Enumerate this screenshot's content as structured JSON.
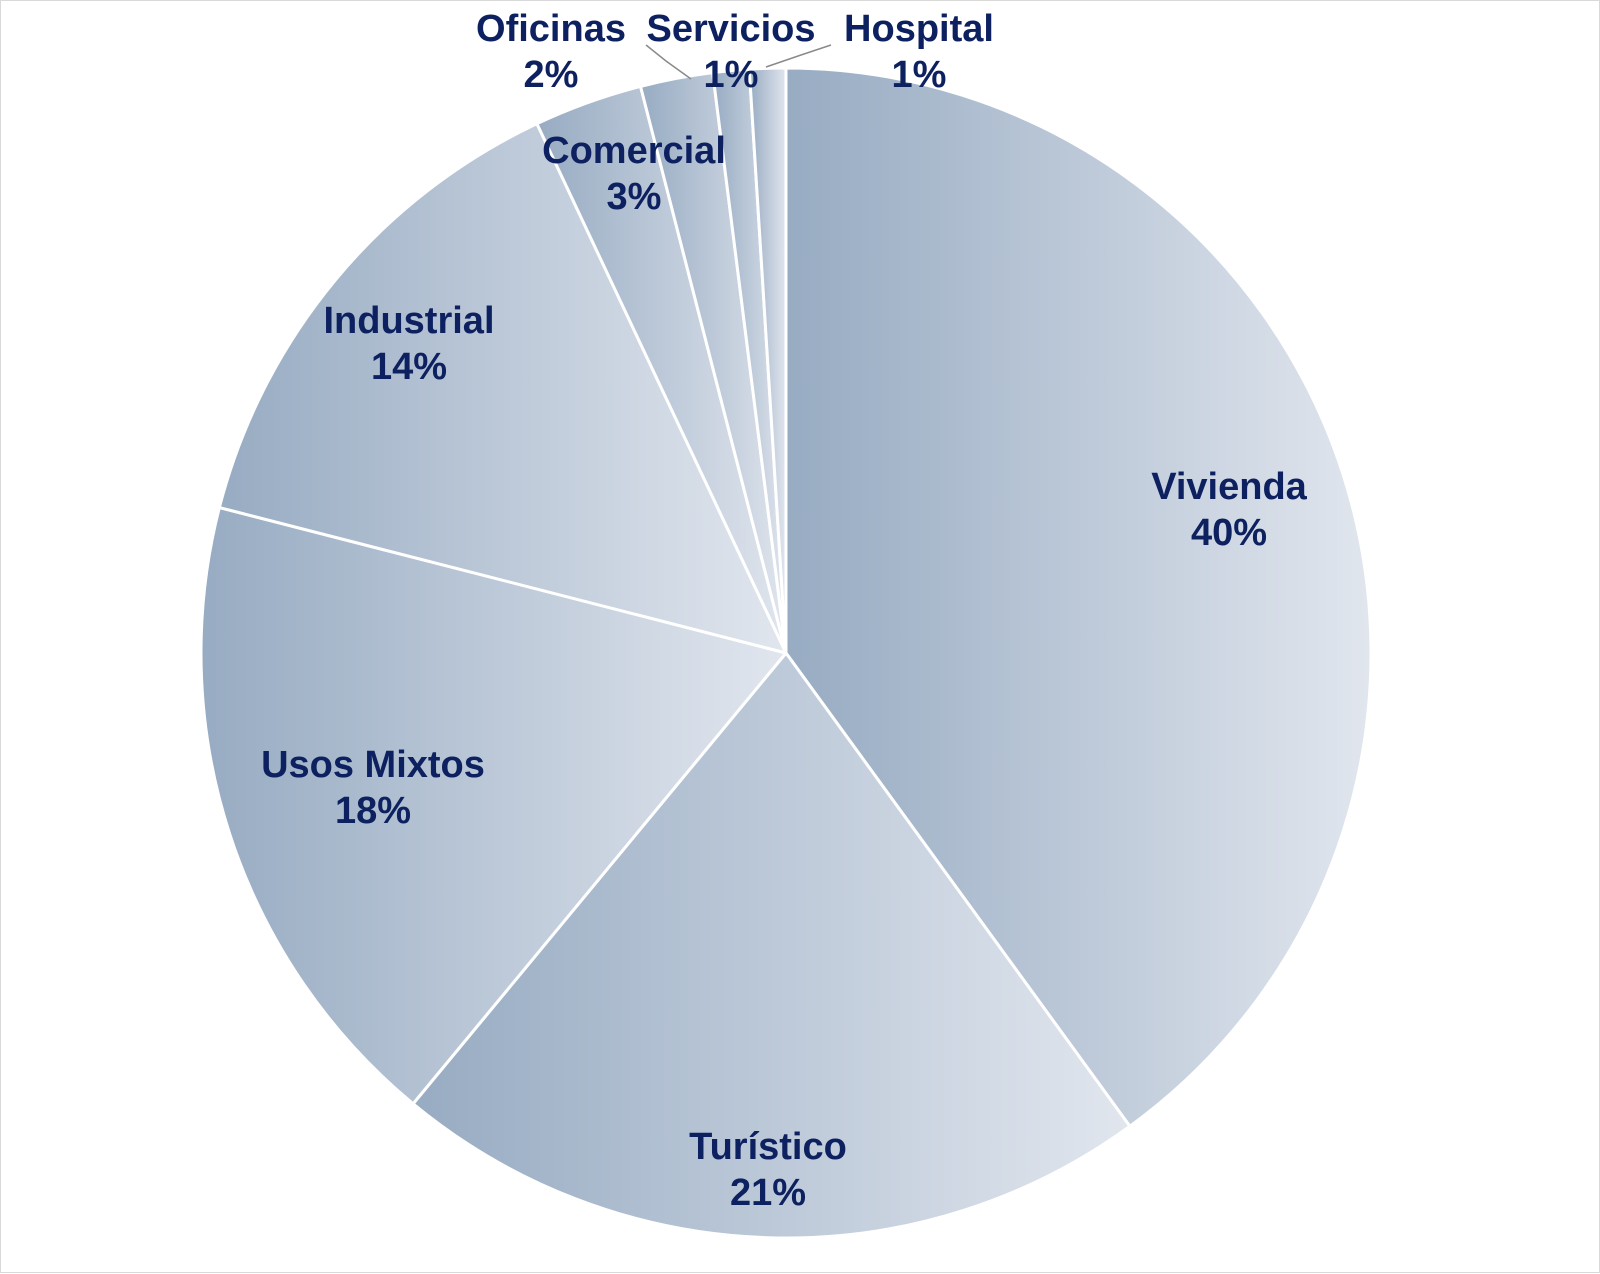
{
  "chart_data": {
    "type": "pie",
    "title": "",
    "start": "12 o'clock",
    "direction": "clockwise",
    "label_color": "#0d2160",
    "slice_gradient": [
      "#97abc2",
      "#e1e6ee"
    ],
    "separator_color": "#ffffff",
    "slices": [
      {
        "name": "Vivienda",
        "value": 40,
        "label": "40%"
      },
      {
        "name": "Turístico",
        "value": 21,
        "label": "21%"
      },
      {
        "name": "Usos Mixtos",
        "value": 18,
        "label": "18%"
      },
      {
        "name": "Industrial",
        "value": 14,
        "label": "14%"
      },
      {
        "name": "Comercial",
        "value": 3,
        "label": "3%"
      },
      {
        "name": "Oficinas",
        "value": 2,
        "label": "2%"
      },
      {
        "name": "Servicios",
        "value": 1,
        "label": "1%"
      },
      {
        "name": "Hospital",
        "value": 1,
        "label": "1%"
      }
    ]
  }
}
